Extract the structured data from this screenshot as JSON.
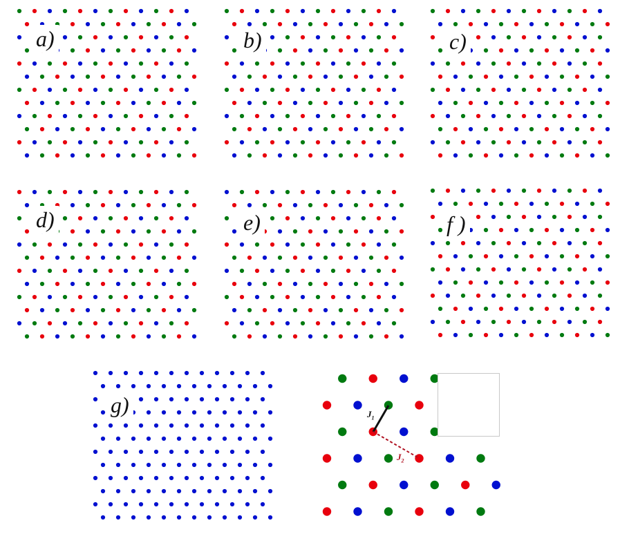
{
  "colors": {
    "A": "#e8000d",
    "B": "#0010d0",
    "C": "#007a10",
    "bond_j1": "#111111",
    "bond_j2": "#b01020",
    "center": "#66aaaa"
  },
  "panels": [
    {
      "id": "a",
      "label": "a)",
      "cycle_row": 1,
      "cycle_col": 1,
      "offset": 0,
      "seq_row_start": [
        "C",
        "A",
        "B"
      ]
    },
    {
      "id": "b",
      "label": "b)",
      "cycle_row": 0,
      "cycle_col": 1,
      "offset": 0,
      "seq_row_start": [
        "C",
        "A",
        "B"
      ]
    },
    {
      "id": "c",
      "label": "c)",
      "cycle_row": 0,
      "cycle_col": 1,
      "offset": 0,
      "seq_row_start": [
        "C",
        "B",
        "A"
      ]
    },
    {
      "id": "d",
      "label": "d)",
      "cycle_row": 1,
      "cycle_col": 1,
      "offset": 0,
      "seq_row_start": [
        "A",
        "B",
        "C"
      ]
    },
    {
      "id": "e",
      "label": "e)",
      "cycle_row": 0,
      "cycle_col": 1,
      "offset": 0,
      "seq_row_start": [
        "B",
        "A",
        "C"
      ]
    },
    {
      "id": "f",
      "label": "f )",
      "cycle_row": 1,
      "cycle_col": 1,
      "offset": 0,
      "seq_row_start": [
        "C",
        "B",
        "A"
      ]
    },
    {
      "id": "g",
      "label": "g)",
      "cycle_row": 0,
      "cycle_col": 0,
      "offset": 0,
      "seq_row_start": [
        "B",
        "B",
        "B"
      ]
    }
  ],
  "inset": {
    "rows": [
      [
        "C",
        "A",
        "B",
        "C"
      ],
      [
        "A",
        "B",
        "C",
        "A"
      ],
      [
        "C",
        "A",
        "B",
        "C"
      ],
      [
        "A",
        "B",
        "C",
        "A",
        "B",
        "C"
      ],
      [
        "C",
        "A",
        "B",
        "C",
        "A",
        "B"
      ],
      [
        "A",
        "B",
        "C",
        "A",
        "B",
        "C"
      ]
    ],
    "j1_label": "J",
    "j1_sub": "1",
    "j2_label": "J",
    "j2_sub": "2"
  }
}
